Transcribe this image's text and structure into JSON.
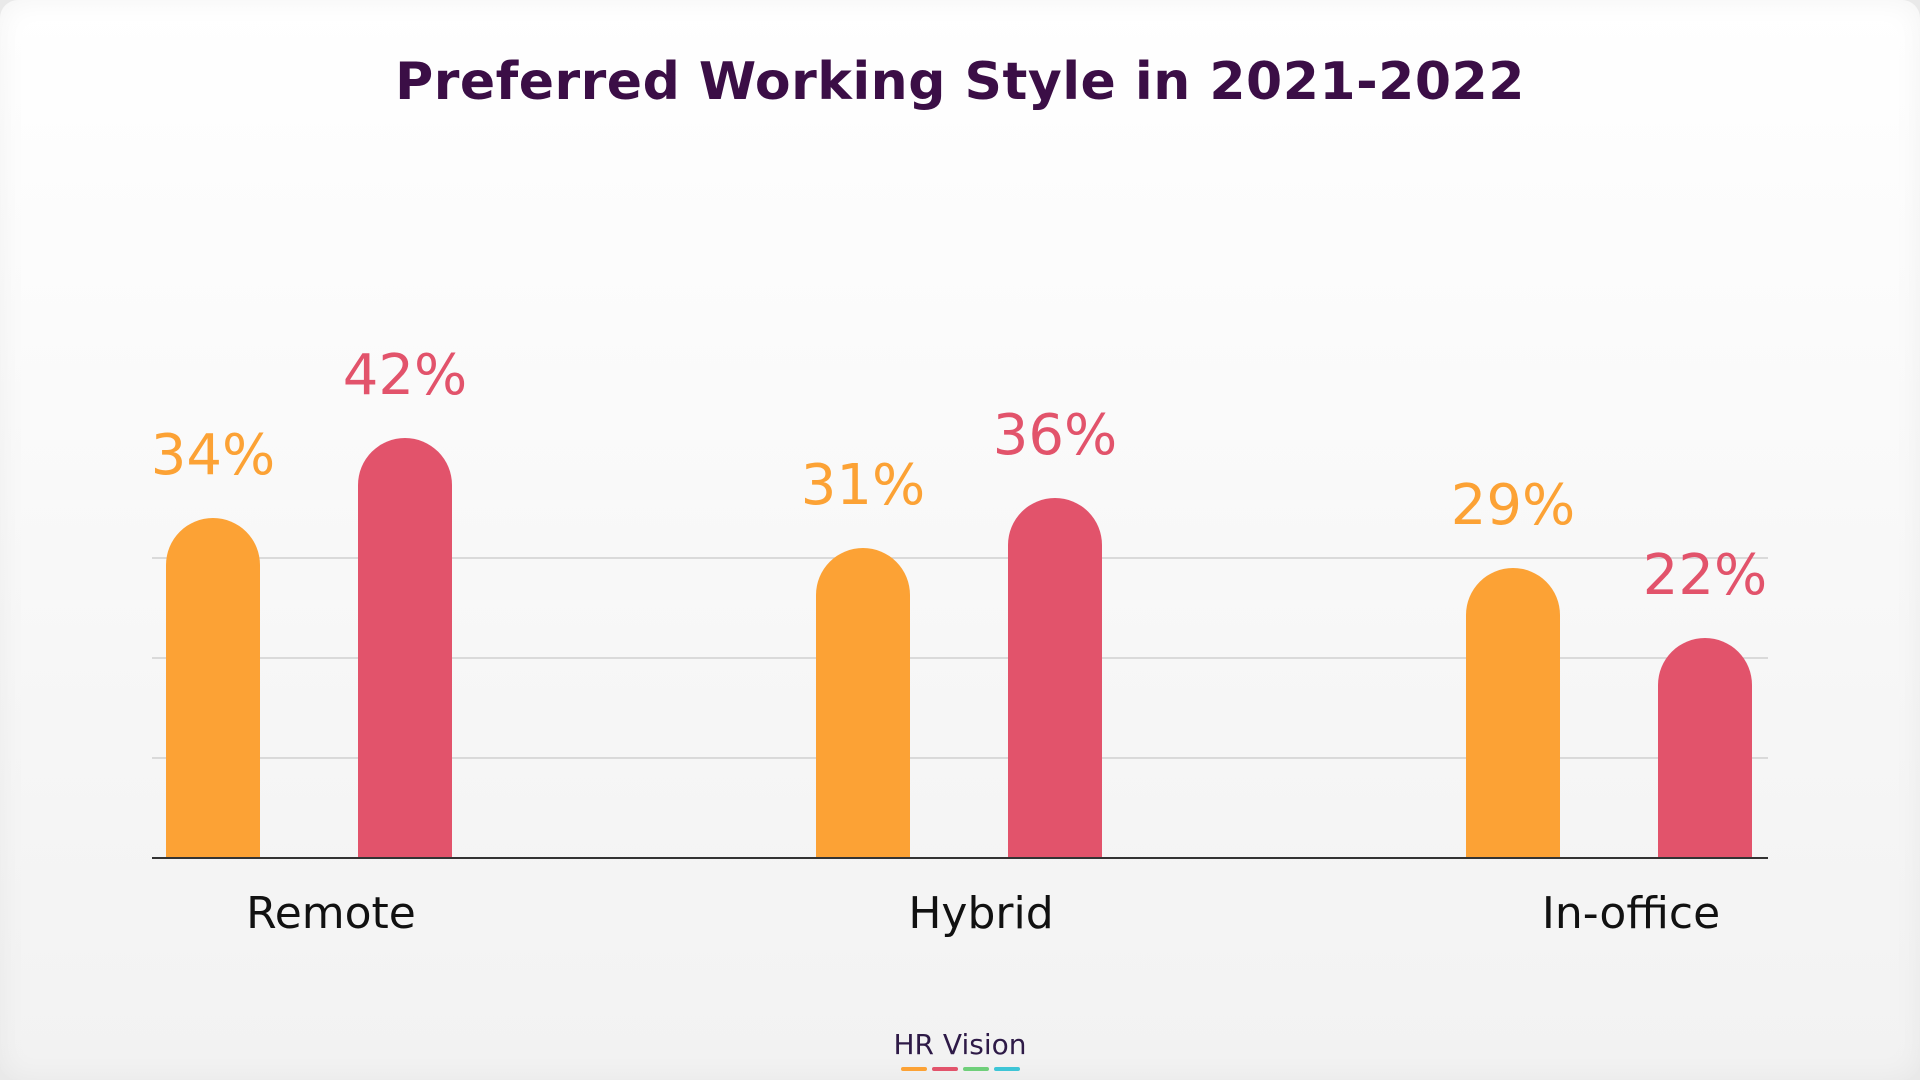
{
  "chart_data": {
    "type": "bar",
    "title": "Preferred Working Style in 2021-2022",
    "categories": [
      "Remote",
      "Hybrid",
      "In-office"
    ],
    "series": [
      {
        "values": [
          34,
          31,
          29
        ],
        "labels": [
          "34%",
          "31%",
          "29%"
        ],
        "color": "#fca235"
      },
      {
        "values": [
          42,
          36,
          22
        ],
        "labels": [
          "42%",
          "36%",
          "22%"
        ],
        "color": "#e2536b"
      }
    ],
    "xlabel": "",
    "ylabel": "",
    "ylim": [
      0,
      50
    ],
    "grid": true,
    "legend": "none"
  },
  "footer": {
    "logo_text": "HR Vision",
    "logo_colors": [
      "#fca235",
      "#e2536b",
      "#6fcf7a",
      "#3ec5d6"
    ]
  },
  "colors": {
    "title": "#3b0e46",
    "axis": "#333333",
    "grid": "#d0d0d0"
  }
}
